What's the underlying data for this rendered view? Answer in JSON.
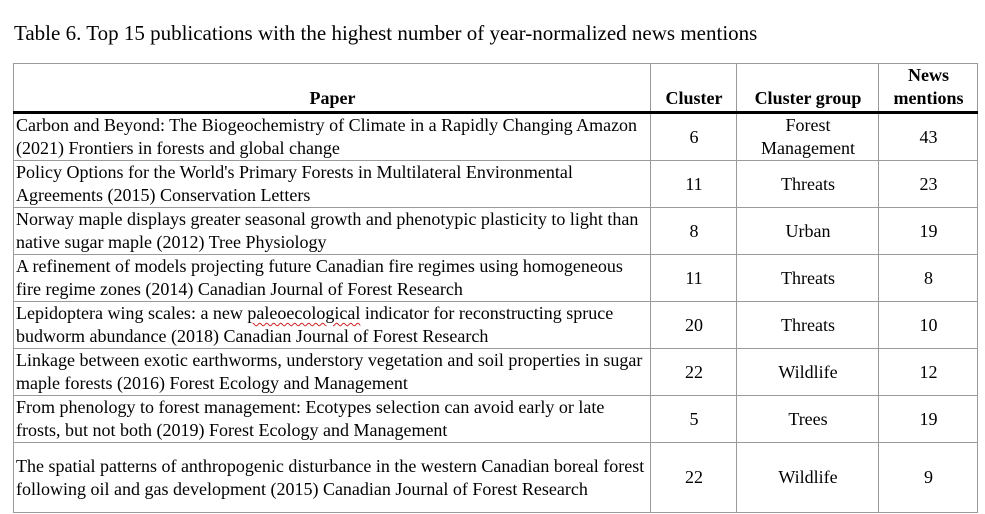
{
  "caption": "Table 6. Top 15 publications with the highest number of year-normalized news mentions",
  "table": {
    "headers": {
      "paper": "Paper",
      "cluster": "Cluster",
      "cluster_group": "Cluster group",
      "news_mentions": "News mentions"
    },
    "rows": [
      {
        "paper": "Carbon and Beyond: The Biogeochemistry of Climate in a Rapidly Changing Amazon (2021) Frontiers in forests and global change",
        "cluster": "6",
        "cluster_group": "Forest Management",
        "news_mentions": "43"
      },
      {
        "paper": "Policy Options for the World's Primary Forests in Multilateral Environmental Agreements (2015) Conservation Letters",
        "cluster": "11",
        "cluster_group": "Threats",
        "news_mentions": "23"
      },
      {
        "paper": "Norway maple displays greater seasonal growth and phenotypic plasticity to light than native sugar maple (2012) Tree Physiology",
        "cluster": "8",
        "cluster_group": "Urban",
        "news_mentions": "19"
      },
      {
        "paper": "A refinement of models projecting future Canadian fire regimes using homogeneous fire regime zones (2014) Canadian Journal of Forest Research",
        "cluster": "11",
        "cluster_group": "Threats",
        "news_mentions": "8"
      },
      {
        "paper_pre": "Lepidoptera wing scales: a new ",
        "paper_flagged": "paleoecological",
        "paper_post": " indicator for reconstructing spruce budworm abundance (2018) Canadian Journal of Forest Research",
        "cluster": "20",
        "cluster_group": "Threats",
        "news_mentions": "10"
      },
      {
        "paper": "Linkage between exotic earthworms, understory vegetation and soil properties in sugar maple forests (2016) Forest Ecology and Management",
        "cluster": "22",
        "cluster_group": "Wildlife",
        "news_mentions": "12"
      },
      {
        "paper": "From phenology to forest management: Ecotypes selection can avoid early or late frosts, but not both (2019) Forest Ecology and Management",
        "cluster": "5",
        "cluster_group": "Trees",
        "news_mentions": "19"
      },
      {
        "paper": "The spatial patterns of anthropogenic disturbance in the western Canadian boreal forest following oil and gas development (2015) Canadian Journal of Forest Research",
        "cluster": "22",
        "cluster_group": "Wildlife",
        "news_mentions": "9"
      }
    ]
  }
}
